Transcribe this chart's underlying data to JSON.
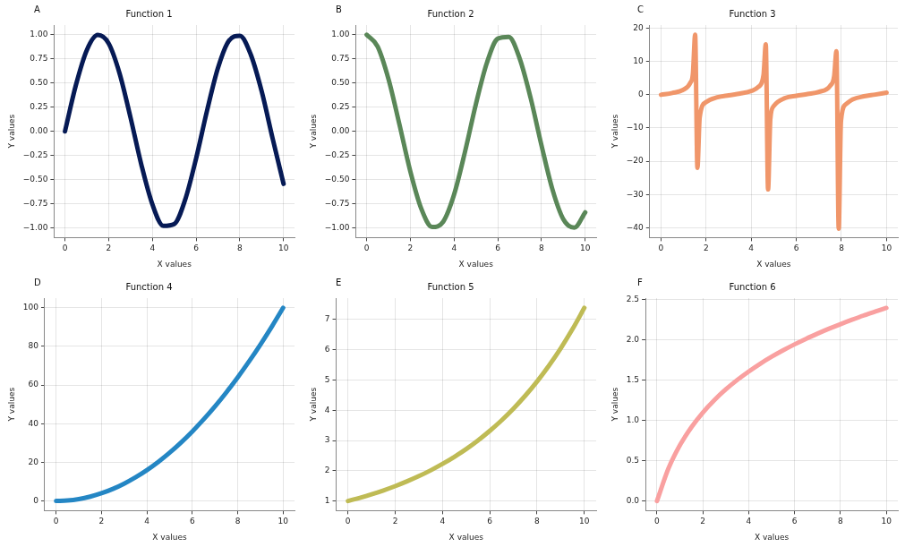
{
  "chart_data": [
    {
      "type": "line",
      "title": "Function 1",
      "xlabel": "X values",
      "ylabel": "Y values",
      "annotations": [
        "A"
      ],
      "grid": true,
      "legend": false,
      "marker": "none",
      "line_style": "solid",
      "x": [
        0,
        0.5,
        1,
        1.5,
        2,
        2.5,
        3,
        3.5,
        4,
        4.5,
        5,
        5.5,
        6,
        6.5,
        7,
        7.5,
        8,
        8.5,
        9,
        9.5,
        10
      ],
      "series": [
        {
          "color": "#061a55",
          "values": [
            0,
            0.479,
            0.841,
            0.997,
            0.909,
            0.598,
            0.141,
            -0.351,
            -0.757,
            -0.978,
            -0.959,
            -0.706,
            -0.279,
            0.215,
            0.657,
            0.938,
            0.989,
            0.794,
            0.412,
            -0.075,
            -0.544
          ]
        }
      ],
      "xlim": [
        -0.5,
        10.5
      ],
      "xticks": [
        0,
        2,
        4,
        6,
        8,
        10
      ],
      "ylim": [
        -1.1,
        1.1
      ],
      "yticks": [
        {
          "value": -1,
          "label": "−1.00"
        },
        {
          "value": -0.75,
          "label": "−0.75"
        },
        {
          "value": -0.5,
          "label": "−0.50"
        },
        {
          "value": -0.25,
          "label": "−0.25"
        },
        {
          "value": 0,
          "label": "0.00"
        },
        {
          "value": 0.25,
          "label": "0.25"
        },
        {
          "value": 0.5,
          "label": "0.50"
        },
        {
          "value": 0.75,
          "label": "0.75"
        },
        {
          "value": 1,
          "label": "1.00"
        }
      ]
    },
    {
      "type": "line",
      "title": "Function 2",
      "xlabel": "X values",
      "ylabel": "Y values",
      "annotations": [
        "B"
      ],
      "grid": true,
      "legend": false,
      "marker": "none",
      "line_style": "solid",
      "x": [
        0,
        0.5,
        1,
        1.5,
        2,
        2.5,
        3,
        3.5,
        4,
        4.5,
        5,
        5.5,
        6,
        6.5,
        7,
        7.5,
        8,
        8.5,
        9,
        9.5,
        10
      ],
      "series": [
        {
          "color": "#5a8758",
          "values": [
            1,
            0.878,
            0.54,
            0.071,
            -0.416,
            -0.801,
            -0.99,
            -0.936,
            -0.654,
            -0.211,
            0.284,
            0.709,
            0.96,
            0.977,
            0.754,
            0.347,
            -0.146,
            -0.602,
            -0.911,
            -0.997,
            -0.839
          ]
        }
      ],
      "xlim": [
        -0.5,
        10.5
      ],
      "xticks": [
        0,
        2,
        4,
        6,
        8,
        10
      ],
      "ylim": [
        -1.1,
        1.1
      ],
      "yticks": [
        {
          "value": -1,
          "label": "−1.00"
        },
        {
          "value": -0.75,
          "label": "−0.75"
        },
        {
          "value": -0.5,
          "label": "−0.50"
        },
        {
          "value": -0.25,
          "label": "−0.25"
        },
        {
          "value": 0,
          "label": "0.00"
        },
        {
          "value": 0.25,
          "label": "0.25"
        },
        {
          "value": 0.5,
          "label": "0.50"
        },
        {
          "value": 0.75,
          "label": "0.75"
        },
        {
          "value": 1,
          "label": "1.00"
        }
      ]
    },
    {
      "type": "line",
      "title": "Function 3",
      "xlabel": "X values",
      "ylabel": "Y values",
      "annotations": [
        "C"
      ],
      "grid": true,
      "legend": false,
      "marker": "none",
      "line_style": "solid",
      "x": [
        0,
        0.5,
        1,
        1.3,
        1.414,
        1.515,
        1.616,
        1.717,
        2,
        2.5,
        3,
        3.5,
        4,
        4.3,
        4.545,
        4.646,
        4.747,
        4.848,
        5,
        5.5,
        6,
        6.5,
        7,
        7.5,
        7.677,
        7.778,
        7.879,
        7.98,
        8.2,
        8.5,
        9,
        9.5,
        10
      ],
      "series": [
        {
          "color": "#f0966a",
          "values": [
            0,
            0.55,
            1.56,
            3.6,
            6.3,
            18.1,
            -22,
            -6.8,
            -2.19,
            -0.75,
            -0.14,
            0.37,
            1.16,
            2.28,
            5.96,
            15.2,
            -28.5,
            -7.3,
            -3.38,
            -0.99,
            -0.29,
            0.22,
            0.87,
            2.71,
            5.6,
            13.1,
            -40.3,
            -7.9,
            -2.81,
            -1.37,
            -0.45,
            0.07,
            0.65
          ]
        }
      ],
      "xlim": [
        -0.5,
        10.5
      ],
      "xticks": [
        0,
        2,
        4,
        6,
        8,
        10
      ],
      "ylim": [
        -43,
        21
      ],
      "yticks": [
        {
          "value": -40,
          "label": "−40"
        },
        {
          "value": -30,
          "label": "−30"
        },
        {
          "value": -20,
          "label": "−20"
        },
        {
          "value": -10,
          "label": "−10"
        },
        0,
        10,
        20
      ]
    },
    {
      "type": "line",
      "title": "Function 4",
      "xlabel": "X values",
      "ylabel": "Y values",
      "annotations": [
        "D"
      ],
      "grid": true,
      "legend": false,
      "marker": "none",
      "line_style": "solid",
      "x": [
        0,
        0.5,
        1,
        1.5,
        2,
        2.5,
        3,
        3.5,
        4,
        4.5,
        5,
        5.5,
        6,
        6.5,
        7,
        7.5,
        8,
        8.5,
        9,
        9.5,
        10
      ],
      "series": [
        {
          "color": "#2486c4",
          "values": [
            0,
            0.25,
            1,
            2.25,
            4,
            6.25,
            9,
            12.25,
            16,
            20.25,
            25,
            30.25,
            36,
            42.25,
            49,
            56.25,
            64,
            72.25,
            81,
            90.25,
            100
          ]
        }
      ],
      "xlim": [
        -0.5,
        10.5
      ],
      "xticks": [
        0,
        2,
        4,
        6,
        8,
        10
      ],
      "ylim": [
        -5,
        105
      ],
      "yticks": [
        0,
        20,
        40,
        60,
        80,
        100
      ]
    },
    {
      "type": "line",
      "title": "Function 5",
      "xlabel": "X values",
      "ylabel": "Y values",
      "annotations": [
        "E"
      ],
      "grid": true,
      "legend": false,
      "marker": "none",
      "line_style": "solid",
      "x": [
        0,
        0.5,
        1,
        1.5,
        2,
        2.5,
        3,
        3.5,
        4,
        4.5,
        5,
        5.5,
        6,
        6.5,
        7,
        7.5,
        8,
        8.5,
        9,
        9.5,
        10
      ],
      "series": [
        {
          "color": "#bfbb55",
          "values": [
            1,
            1.105,
            1.221,
            1.35,
            1.492,
            1.649,
            1.822,
            2.014,
            2.226,
            2.46,
            2.718,
            3.004,
            3.32,
            3.669,
            4.055,
            4.482,
            4.953,
            5.474,
            6.05,
            6.686,
            7.389
          ]
        }
      ],
      "xlim": [
        -0.5,
        10.5
      ],
      "xticks": [
        0,
        2,
        4,
        6,
        8,
        10
      ],
      "ylim": [
        0.68,
        7.71
      ],
      "yticks": [
        1,
        2,
        3,
        4,
        5,
        6,
        7
      ]
    },
    {
      "type": "line",
      "title": "Function 6",
      "xlabel": "X values",
      "ylabel": "Y values",
      "annotations": [
        "F"
      ],
      "grid": true,
      "legend": false,
      "marker": "none",
      "line_style": "solid",
      "x": [
        0,
        0.5,
        1,
        1.5,
        2,
        2.5,
        3,
        3.5,
        4,
        4.5,
        5,
        5.5,
        6,
        6.5,
        7,
        7.5,
        8,
        8.5,
        9,
        9.5,
        10
      ],
      "series": [
        {
          "color": "#f9a0a0",
          "values": [
            0,
            0.405,
            0.693,
            0.916,
            1.099,
            1.253,
            1.386,
            1.504,
            1.609,
            1.705,
            1.792,
            1.872,
            1.946,
            2.015,
            2.079,
            2.14,
            2.197,
            2.251,
            2.303,
            2.351,
            2.398
          ]
        }
      ],
      "xlim": [
        -0.5,
        10.5
      ],
      "xticks": [
        0,
        2,
        4,
        6,
        8,
        10
      ],
      "ylim": [
        -0.12,
        2.52
      ],
      "yticks": [
        {
          "value": 0,
          "label": "0.0"
        },
        {
          "value": 0.5,
          "label": "0.5"
        },
        {
          "value": 1,
          "label": "1.0"
        },
        {
          "value": 1.5,
          "label": "1.5"
        },
        {
          "value": 2,
          "label": "2.0"
        },
        {
          "value": 2.5,
          "label": "2.5"
        }
      ]
    }
  ]
}
